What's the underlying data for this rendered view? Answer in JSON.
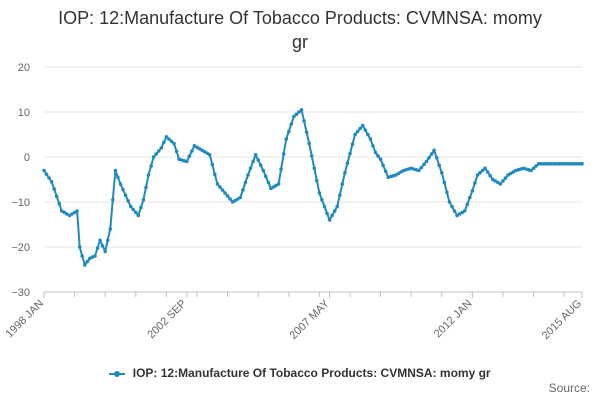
{
  "chart_data": {
    "type": "line",
    "title_line1": "IOP: 12:Manufacture Of Tobacco Products: CVMNSA: momy",
    "title_line2": "gr",
    "ylim": [
      -30,
      20
    ],
    "yticks": [
      "20",
      "10",
      "0",
      "−10",
      "−20",
      "−30"
    ],
    "ytick_values": [
      20,
      10,
      0,
      -10,
      -20,
      -30
    ],
    "xtick_labels": [
      "1998 JAN",
      "2002 SEP",
      "2007 MAY",
      "2012 JAN",
      "2015 AUG"
    ],
    "xtick_dates": [
      "1998-01",
      "2002-09",
      "2007-05",
      "2012-01",
      "2015-08"
    ],
    "x_start": "1998-01",
    "x_end": "2015-08",
    "grid": true,
    "legend_position": "bottom",
    "color": "#1f8ac0",
    "series": [
      {
        "name": "IOP: 12:Manufacture Of Tobacco Products: CVMNSA: momy gr",
        "x": [
          "1998-01",
          "1998-04",
          "1998-08",
          "1998-11",
          "1999-02",
          "1999-03",
          "1999-05",
          "1999-07",
          "1999-09",
          "1999-11",
          "2000-01",
          "2000-03",
          "2000-05",
          "2000-07",
          "2000-09",
          "2000-11",
          "2001-02",
          "2001-04",
          "2001-06",
          "2001-08",
          "2001-11",
          "2002-01",
          "2002-04",
          "2002-06",
          "2002-09",
          "2002-12",
          "2003-03",
          "2003-06",
          "2003-09",
          "2003-12",
          "2004-03",
          "2004-06",
          "2004-09",
          "2004-12",
          "2005-03",
          "2005-06",
          "2005-09",
          "2005-12",
          "2006-03",
          "2006-06",
          "2006-09",
          "2007-01",
          "2007-05",
          "2007-08",
          "2007-11",
          "2008-03",
          "2008-06",
          "2008-09",
          "2008-11",
          "2009-01",
          "2009-04",
          "2009-07",
          "2009-10",
          "2010-01",
          "2010-04",
          "2010-07",
          "2010-10",
          "2011-01",
          "2011-04",
          "2011-07",
          "2011-10",
          "2012-01",
          "2012-03",
          "2012-06",
          "2012-09",
          "2012-12",
          "2013-03",
          "2013-06",
          "2013-09",
          "2013-12",
          "2014-03",
          "2014-06",
          "2014-09",
          "2014-12",
          "2015-03",
          "2015-06",
          "2015-08"
        ],
        "y": [
          -3,
          -5.5,
          -12,
          -13,
          -12,
          -20,
          -24,
          -22.5,
          -22,
          -18.5,
          -21,
          -16,
          -3,
          -6,
          -8.5,
          -11,
          -13,
          -9.5,
          -4,
          0,
          2,
          4.5,
          3,
          -0.5,
          -1,
          2.5,
          1.5,
          0.5,
          -6,
          -8,
          -10,
          -9,
          -4,
          0.5,
          -3,
          -7,
          -6,
          4,
          9,
          10.5,
          3,
          -8,
          -14,
          -11,
          -3.5,
          5,
          7,
          4,
          1,
          -0.5,
          -4.5,
          -4,
          -3,
          -2.5,
          -3,
          -1,
          1.5,
          -3.5,
          -10,
          -13,
          -12,
          -7.5,
          -4,
          -2.5,
          -5,
          -6,
          -4,
          -3,
          -2.5,
          -3,
          -1.5,
          -1.5,
          -1.5,
          -1.5,
          -1.5,
          -1.5,
          -1.5
        ]
      }
    ]
  },
  "legend": {
    "label": "IOP: 12:Manufacture Of Tobacco Products: CVMNSA: momy gr"
  },
  "source": {
    "label": "Source:"
  }
}
